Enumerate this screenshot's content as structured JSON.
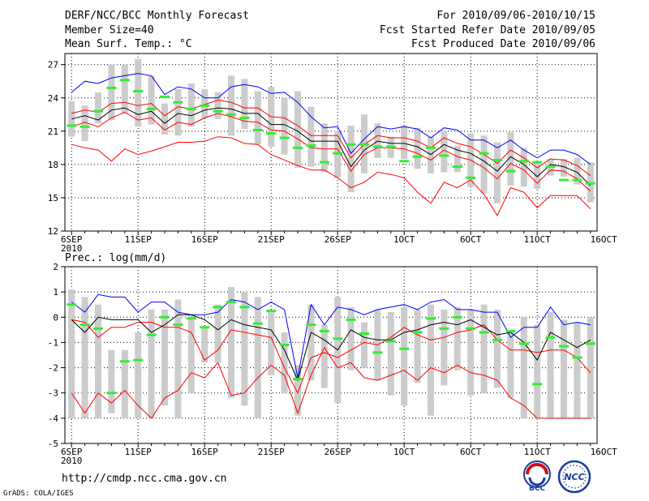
{
  "header": {
    "title": "DERF/NCC/BCC Monthly Forecast",
    "member": "Member Size=40",
    "variable": "Mean Surf. Temp.: °C",
    "period": "For 2010/09/06-2010/10/15",
    "refer": "Fcst Started Refer Date 2010/09/05",
    "produced": "Fcst Produced Date 2010/09/06"
  },
  "footer": {
    "url": "http://cmdp.ncc.cma.gov.cn",
    "grads": "GrADS: COLA/IGES",
    "logo1": "BCC",
    "logo2": "NCC"
  },
  "colors": {
    "max": "#0000ff",
    "min": "#ff0000",
    "mean": "#000000",
    "box": "#cccccc",
    "median": "#33ee33",
    "quartile": "#ff0000",
    "grid": "#000000"
  },
  "chart_data": [
    {
      "type": "box-line",
      "title": "Mean Surf. Temp.: °C",
      "ylim": [
        12,
        28
      ],
      "yticks": [
        12,
        15,
        18,
        21,
        24,
        27
      ],
      "xlim": [
        0.5,
        40.5
      ],
      "xticks": [
        {
          "x": 1,
          "label": "6SEP",
          "sub": "2010"
        },
        {
          "x": 6,
          "label": "11SEP"
        },
        {
          "x": 11,
          "label": "16SEP"
        },
        {
          "x": 16,
          "label": "21SEP"
        },
        {
          "x": 21,
          "label": "26SEP"
        },
        {
          "x": 26,
          "label": "1OCT"
        },
        {
          "x": 31,
          "label": "6OCT"
        },
        {
          "x": 36,
          "label": "11OCT"
        },
        {
          "x": 41,
          "label": "16OCT"
        }
      ],
      "series": [
        {
          "name": "max",
          "values": [
            24.5,
            25.5,
            25.3,
            25.8,
            26.0,
            26.2,
            26.0,
            24.3,
            25.0,
            24.8,
            24.0,
            24.0,
            25.0,
            25.2,
            25.0,
            24.4,
            24.5,
            23.6,
            22.3,
            21.3,
            21.4,
            19.0,
            20.3,
            21.4,
            21.2,
            21.4,
            21.2,
            20.4,
            21.3,
            21.1,
            20.2,
            20.2,
            19.5,
            20.2,
            19.3,
            18.6,
            19.3,
            19.3,
            18.9,
            18.0
          ]
        },
        {
          "name": "q_upper",
          "values": [
            22.6,
            22.9,
            22.7,
            23.5,
            23.6,
            23.3,
            23.5,
            22.4,
            23.2,
            23.0,
            23.4,
            23.8,
            23.6,
            23.1,
            23.1,
            22.3,
            22.2,
            21.5,
            20.6,
            20.6,
            20.6,
            18.6,
            19.8,
            20.6,
            20.4,
            20.4,
            20.1,
            19.5,
            20.4,
            19.9,
            19.6,
            18.9,
            18.1,
            19.3,
            18.6,
            17.7,
            18.5,
            18.4,
            17.9,
            17.0
          ]
        },
        {
          "name": "mean",
          "values": [
            22.1,
            22.4,
            22.0,
            22.9,
            23.1,
            22.5,
            22.8,
            21.7,
            22.6,
            22.4,
            22.9,
            23.1,
            23.0,
            22.6,
            22.6,
            21.6,
            21.6,
            21.0,
            20.1,
            20.1,
            20.1,
            17.8,
            19.3,
            20.1,
            19.9,
            19.9,
            19.6,
            18.9,
            19.8,
            19.3,
            19.0,
            18.3,
            17.4,
            18.7,
            18.0,
            16.9,
            18.0,
            17.8,
            17.3,
            16.1
          ]
        },
        {
          "name": "q_lower",
          "values": [
            21.4,
            21.8,
            21.4,
            22.2,
            22.7,
            22.0,
            22.2,
            21.1,
            21.8,
            21.6,
            22.2,
            22.6,
            22.3,
            21.9,
            21.8,
            21.1,
            21.0,
            20.3,
            19.5,
            19.4,
            19.4,
            17.4,
            18.9,
            19.5,
            19.5,
            19.4,
            19.0,
            18.4,
            19.3,
            18.7,
            18.4,
            17.7,
            16.7,
            18.1,
            17.5,
            16.3,
            17.5,
            17.4,
            16.7,
            15.6
          ]
        },
        {
          "name": "min",
          "values": [
            19.8,
            19.5,
            19.3,
            18.3,
            19.4,
            18.9,
            19.2,
            19.6,
            20.0,
            20.0,
            20.1,
            20.5,
            20.4,
            19.9,
            19.8,
            18.9,
            18.4,
            17.9,
            17.5,
            17.5,
            16.8,
            15.9,
            16.4,
            17.3,
            17.1,
            16.8,
            15.5,
            14.5,
            16.4,
            15.9,
            16.6,
            15.3,
            13.4,
            15.9,
            15.5,
            14.1,
            15.2,
            15.2,
            15.2,
            14.0
          ]
        },
        {
          "name": "box_top",
          "values": [
            23.7,
            23.3,
            24.5,
            27.0,
            27.0,
            27.5,
            26.0,
            23.5,
            24.8,
            25.3,
            24.8,
            24.5,
            26.0,
            25.7,
            24.6,
            25.0,
            24.0,
            24.6,
            23.2,
            21.7,
            21.0,
            21.5,
            22.5,
            21.7,
            20.5,
            21.5,
            21.3,
            20.5,
            21.0,
            19.7,
            20.8,
            20.6,
            20.0,
            20.9,
            19.5,
            18.3,
            18.5,
            18.5,
            18.6,
            18.2
          ]
        },
        {
          "name": "box_bottom",
          "values": [
            20.5,
            20.1,
            21.7,
            22.0,
            22.6,
            21.4,
            21.6,
            20.7,
            20.6,
            21.4,
            22.2,
            22.1,
            20.6,
            21.2,
            19.8,
            19.6,
            18.9,
            17.7,
            17.8,
            17.3,
            16.8,
            15.5,
            17.2,
            18.6,
            18.6,
            18.5,
            17.6,
            17.2,
            17.3,
            17.3,
            16.0,
            15.4,
            14.5,
            16.1,
            16.0,
            15.8,
            17.0,
            16.9,
            16.2,
            14.6
          ]
        },
        {
          "name": "median",
          "values": [
            21.5,
            21.4,
            22.8,
            24.9,
            25.6,
            24.6,
            23.0,
            24.1,
            23.6,
            23.0,
            23.3,
            22.8,
            22.5,
            22.2,
            21.1,
            20.8,
            20.4,
            19.5,
            19.7,
            18.2,
            19.0,
            19.8,
            19.8,
            19.6,
            19.6,
            18.3,
            18.7,
            19.5,
            18.8,
            17.8,
            16.8,
            19.0,
            18.4,
            17.4,
            18.3,
            18.2,
            17.8,
            16.6,
            16.6,
            16.3
          ]
        }
      ]
    },
    {
      "type": "box-line",
      "title": "Prec.: log(mm/d)",
      "ylim": [
        -5,
        2
      ],
      "yticks": [
        -5,
        -4,
        -3,
        -2,
        -1,
        0,
        1,
        2
      ],
      "xlim": [
        0.5,
        40.5
      ],
      "xticks": [
        {
          "x": 1,
          "label": "6SEP",
          "sub": "2010"
        },
        {
          "x": 6,
          "label": "11SEP"
        },
        {
          "x": 11,
          "label": "16SEP"
        },
        {
          "x": 16,
          "label": "21SEP"
        },
        {
          "x": 21,
          "label": "26SEP"
        },
        {
          "x": 26,
          "label": "1OCT"
        },
        {
          "x": 31,
          "label": "6OCT"
        },
        {
          "x": 36,
          "label": "11OCT"
        },
        {
          "x": 41,
          "label": "16OCT"
        }
      ],
      "series": [
        {
          "name": "max",
          "values": [
            0.6,
            0.2,
            0.9,
            0.8,
            0.8,
            0.2,
            0.6,
            0.6,
            0.2,
            0.1,
            0.1,
            0.2,
            0.7,
            0.6,
            0.3,
            0.6,
            0.3,
            -2.4,
            0.5,
            -0.3,
            0.4,
            0.3,
            0.1,
            0.3,
            0.4,
            0.5,
            0.3,
            0.6,
            0.7,
            0.3,
            0.3,
            0.2,
            0.2,
            -0.8,
            -0.4,
            -0.4,
            0.4,
            -0.3,
            -0.2,
            -0.3
          ]
        },
        {
          "name": "mean",
          "values": [
            -0.1,
            -0.6,
            0.0,
            -0.1,
            -0.1,
            -0.1,
            -0.6,
            -0.3,
            0.1,
            0.1,
            -0.1,
            -0.5,
            -0.1,
            -0.3,
            -0.4,
            -0.5,
            -1.3,
            -2.5,
            -0.6,
            -0.9,
            -1.3,
            -0.5,
            -0.8,
            -0.9,
            -0.9,
            -0.6,
            -0.5,
            -0.3,
            -0.2,
            -0.3,
            -0.1,
            -0.4,
            -0.7,
            -0.6,
            -1.0,
            -1.7,
            -0.6,
            -0.9,
            -1.2,
            -0.9
          ]
        },
        {
          "name": "q_lower",
          "values": [
            -3.0,
            -3.8,
            -3.0,
            -3.4,
            -2.9,
            -3.5,
            -4.0,
            -3.2,
            -2.9,
            -2.2,
            -2.4,
            -1.8,
            -3.1,
            -3.0,
            -2.4,
            -1.9,
            -2.3,
            -3.8,
            -2.3,
            -1.2,
            -2.0,
            -1.8,
            -2.4,
            -2.5,
            -2.3,
            -2.1,
            -2.5,
            -2.0,
            -2.2,
            -1.9,
            -2.2,
            -2.3,
            -2.5,
            -3.2,
            -3.5,
            -4.0,
            -4.0,
            -4.0,
            -4.0,
            -4.0
          ]
        },
        {
          "name": "q_upper",
          "values": [
            -0.1,
            -0.2,
            -0.8,
            -0.4,
            -0.4,
            -0.2,
            -0.2,
            -0.4,
            -0.4,
            -0.6,
            -1.7,
            -1.3,
            -0.5,
            -0.6,
            -0.7,
            -0.8,
            -2.0,
            -3.0,
            -1.6,
            -1.4,
            -1.6,
            -1.3,
            -1.0,
            -1.1,
            -0.8,
            -0.4,
            -0.7,
            -0.9,
            -0.8,
            -0.6,
            -0.5,
            -0.3,
            -0.9,
            -1.3,
            -1.3,
            -1.4,
            -1.3,
            -1.3,
            -1.6,
            -2.2
          ]
        },
        {
          "name": "box_top",
          "values": [
            1.1,
            0.8,
            0.5,
            -1.3,
            -1.3,
            -0.6,
            0.3,
            0.3,
            0.7,
            0.1,
            -0.4,
            0.5,
            1.2,
            1.0,
            0.8,
            0.3,
            -0.6,
            -1.9,
            0.5,
            -0.3,
            0.8,
            0.4,
            -0.2,
            0.3,
            0.2,
            0.4,
            0.3,
            0.5,
            0.3,
            0.4,
            0.3,
            0.5,
            0.3,
            -0.6,
            0.0,
            -0.3,
            0.2,
            -0.1,
            -0.2,
            0.0
          ]
        },
        {
          "name": "box_bottom",
          "values": [
            -4.0,
            -4.0,
            -4.0,
            -3.8,
            -4.0,
            -4.0,
            -4.0,
            -3.5,
            -4.0,
            -3.0,
            -1.8,
            -1.8,
            -3.2,
            -3.5,
            -4.0,
            -2.3,
            -3.0,
            -3.9,
            -2.5,
            -2.8,
            -3.4,
            -2.1,
            -2.0,
            -2.5,
            -3.1,
            -3.5,
            -2.6,
            -3.9,
            -2.7,
            -2.1,
            -3.1,
            -3.0,
            -2.8,
            -3.2,
            -4.0,
            -4.0,
            -4.0,
            -4.0,
            -4.0,
            -4.0
          ]
        },
        {
          "name": "median",
          "values": [
            0.5,
            -0.3,
            -0.45,
            -3.0,
            -1.75,
            -1.7,
            -0.7,
            0.0,
            -0.3,
            -0.05,
            -0.4,
            0.4,
            0.6,
            0.4,
            -0.25,
            0.25,
            -1.1,
            -2.45,
            -0.3,
            -0.55,
            -0.85,
            -0.1,
            -0.65,
            -1.4,
            -0.95,
            -1.25,
            -0.6,
            -0.05,
            -0.45,
            0.0,
            -0.45,
            -0.6,
            -0.9,
            -0.55,
            -1.05,
            -2.65,
            -0.8,
            -1.15,
            -1.6,
            -1.05
          ]
        }
      ]
    }
  ]
}
